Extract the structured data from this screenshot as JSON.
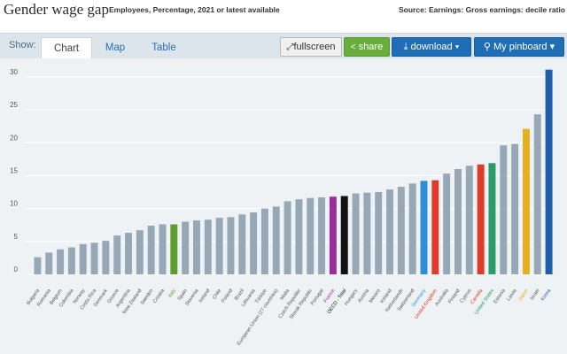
{
  "header": {
    "title": "Gender wage gap",
    "subtitle": "Employees, Percentage, 2021 or latest available",
    "source": "Source: Earnings: Gross earnings: decile ratio"
  },
  "toolbar": {
    "show_label": "Show:",
    "tabs": [
      {
        "label": "Chart",
        "active": true
      },
      {
        "label": "Map",
        "active": false
      },
      {
        "label": "Table",
        "active": false
      }
    ],
    "fullscreen_label": "fullscreen",
    "share_label": "share",
    "download_label": "download ▾",
    "pinboard_label": "My pinboard ▾"
  },
  "colors": {
    "default_bar": "#96a8b6",
    "highlight_green": "#5e9e2e",
    "highlight_purple": "#9b2d9b",
    "highlight_black": "#111111",
    "highlight_blue": "#2e8fd6",
    "highlight_red": "#e03a2a",
    "highlight_teal": "#2b9b6a",
    "highlight_gold": "#e2b020",
    "highlight_navy": "#1e5fa8",
    "grid": "#ffffff"
  },
  "chart_data": {
    "type": "bar",
    "ylim": [
      0,
      32
    ],
    "yticks": [
      0,
      5,
      10,
      15,
      20,
      25,
      30
    ],
    "grid": true,
    "categories": [
      {
        "name": "Bulgaria",
        "value": 2.6,
        "color": "#96a8b6",
        "label_color": "#555555"
      },
      {
        "name": "Romania",
        "value": 3.3,
        "color": "#96a8b6",
        "label_color": "#555555"
      },
      {
        "name": "Belgium",
        "value": 3.8,
        "color": "#96a8b6",
        "label_color": "#555555"
      },
      {
        "name": "Colombia",
        "value": 4.1,
        "color": "#96a8b6",
        "label_color": "#555555"
      },
      {
        "name": "Norway",
        "value": 4.6,
        "color": "#96a8b6",
        "label_color": "#555555"
      },
      {
        "name": "Costa Rica",
        "value": 4.8,
        "color": "#96a8b6",
        "label_color": "#555555"
      },
      {
        "name": "Denmark",
        "value": 5.1,
        "color": "#96a8b6",
        "label_color": "#555555"
      },
      {
        "name": "Greece",
        "value": 5.9,
        "color": "#96a8b6",
        "label_color": "#555555"
      },
      {
        "name": "Argentina",
        "value": 6.3,
        "color": "#96a8b6",
        "label_color": "#555555"
      },
      {
        "name": "New Zealand",
        "value": 6.7,
        "color": "#96a8b6",
        "label_color": "#555555"
      },
      {
        "name": "Sweden",
        "value": 7.4,
        "color": "#96a8b6",
        "label_color": "#555555"
      },
      {
        "name": "Croatia",
        "value": 7.6,
        "color": "#96a8b6",
        "label_color": "#555555"
      },
      {
        "name": "Italy",
        "value": 7.6,
        "color": "#5e9e2e",
        "label_color": "#5e9e2e"
      },
      {
        "name": "Spain",
        "value": 8.0,
        "color": "#96a8b6",
        "label_color": "#555555"
      },
      {
        "name": "Slovenia",
        "value": 8.2,
        "color": "#96a8b6",
        "label_color": "#555555"
      },
      {
        "name": "Ireland",
        "value": 8.3,
        "color": "#96a8b6",
        "label_color": "#555555"
      },
      {
        "name": "Chile",
        "value": 8.6,
        "color": "#96a8b6",
        "label_color": "#555555"
      },
      {
        "name": "Poland",
        "value": 8.7,
        "color": "#96a8b6",
        "label_color": "#555555"
      },
      {
        "name": "Brazil",
        "value": 9.1,
        "color": "#96a8b6",
        "label_color": "#555555"
      },
      {
        "name": "Lithuania",
        "value": 9.4,
        "color": "#96a8b6",
        "label_color": "#555555"
      },
      {
        "name": "Türkiye",
        "value": 10.0,
        "color": "#96a8b6",
        "label_color": "#555555"
      },
      {
        "name": "European Union (27 countries)",
        "value": 10.3,
        "color": "#96a8b6",
        "label_color": "#555555"
      },
      {
        "name": "Malta",
        "value": 11.1,
        "color": "#96a8b6",
        "label_color": "#555555"
      },
      {
        "name": "Czech Republic",
        "value": 11.4,
        "color": "#96a8b6",
        "label_color": "#555555"
      },
      {
        "name": "Slovak Republic",
        "value": 11.6,
        "color": "#96a8b6",
        "label_color": "#555555"
      },
      {
        "name": "Portugal",
        "value": 11.7,
        "color": "#96a8b6",
        "label_color": "#555555"
      },
      {
        "name": "France",
        "value": 11.8,
        "color": "#9b2d9b",
        "label_color": "#9b2d9b"
      },
      {
        "name": "OECD - Total",
        "value": 11.9,
        "color": "#111111",
        "label_color": "#111111"
      },
      {
        "name": "Hungary",
        "value": 12.3,
        "color": "#96a8b6",
        "label_color": "#555555"
      },
      {
        "name": "Austria",
        "value": 12.4,
        "color": "#96a8b6",
        "label_color": "#555555"
      },
      {
        "name": "Mexico",
        "value": 12.5,
        "color": "#96a8b6",
        "label_color": "#555555"
      },
      {
        "name": "Iceland",
        "value": 12.9,
        "color": "#96a8b6",
        "label_color": "#555555"
      },
      {
        "name": "Netherlands",
        "value": 13.3,
        "color": "#96a8b6",
        "label_color": "#555555"
      },
      {
        "name": "Switzerland",
        "value": 13.8,
        "color": "#96a8b6",
        "label_color": "#555555"
      },
      {
        "name": "Germany",
        "value": 14.2,
        "color": "#2e8fd6",
        "label_color": "#2e8fd6"
      },
      {
        "name": "United Kingdom",
        "value": 14.3,
        "color": "#e03a2a",
        "label_color": "#e03a2a"
      },
      {
        "name": "Australia",
        "value": 15.3,
        "color": "#96a8b6",
        "label_color": "#555555"
      },
      {
        "name": "Finland",
        "value": 16.0,
        "color": "#96a8b6",
        "label_color": "#555555"
      },
      {
        "name": "Cyprus",
        "value": 16.5,
        "color": "#96a8b6",
        "label_color": "#555555"
      },
      {
        "name": "Canada",
        "value": 16.7,
        "color": "#e03a2a",
        "label_color": "#e03a2a"
      },
      {
        "name": "United States",
        "value": 16.9,
        "color": "#2b9b6a",
        "label_color": "#2b9b6a"
      },
      {
        "name": "Estonia",
        "value": 19.6,
        "color": "#96a8b6",
        "label_color": "#555555"
      },
      {
        "name": "Latvia",
        "value": 19.8,
        "color": "#96a8b6",
        "label_color": "#555555"
      },
      {
        "name": "Japan",
        "value": 22.1,
        "color": "#e2b020",
        "label_color": "#e2b020"
      },
      {
        "name": "Israel",
        "value": 24.3,
        "color": "#96a8b6",
        "label_color": "#555555"
      },
      {
        "name": "Korea",
        "value": 31.1,
        "color": "#1e5fa8",
        "label_color": "#1e5fa8"
      }
    ]
  }
}
